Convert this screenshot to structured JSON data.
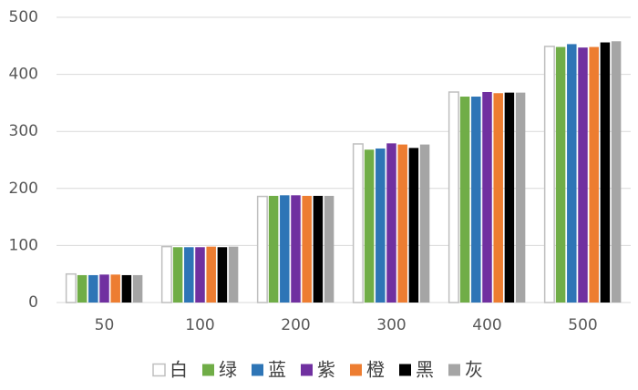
{
  "chart_data": {
    "type": "bar",
    "categories": [
      "50",
      "100",
      "200",
      "300",
      "400",
      "500"
    ],
    "series": [
      {
        "name": "白",
        "color": "#ffffff",
        "values": [
          50,
          98,
          186,
          278,
          369,
          449
        ]
      },
      {
        "name": "绿",
        "color": "#70ad47",
        "values": [
          48,
          97,
          187,
          268,
          361,
          448
        ]
      },
      {
        "name": "蓝",
        "color": "#2e75b6",
        "values": [
          48,
          97,
          188,
          270,
          361,
          453
        ]
      },
      {
        "name": "紫",
        "color": "#7030a0",
        "values": [
          49,
          97,
          188,
          279,
          369,
          447
        ]
      },
      {
        "name": "橙",
        "color": "#ed7d31",
        "values": [
          49,
          98,
          187,
          277,
          367,
          448
        ]
      },
      {
        "name": "黑",
        "color": "#000000",
        "values": [
          48,
          97,
          187,
          271,
          368,
          456
        ]
      },
      {
        "name": "灰",
        "color": "#a5a5a5",
        "values": [
          48,
          98,
          187,
          277,
          368,
          458
        ]
      }
    ],
    "ylim": [
      0,
      500
    ],
    "yticks": [
      0,
      100,
      200,
      300,
      400,
      500
    ],
    "grid": true,
    "legend": "bottom"
  }
}
